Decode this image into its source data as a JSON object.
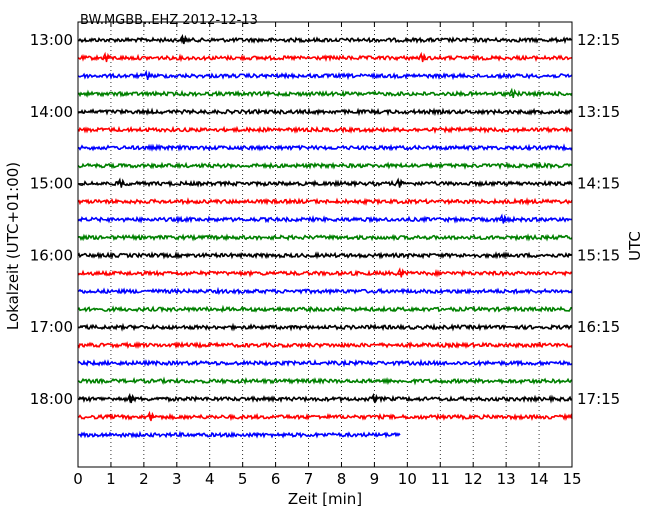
{
  "chart_data": {
    "type": "line",
    "title": "BW.MGBB..EHZ 2012-12-13",
    "xlabel": "Zeit  [min]",
    "ylabel": "Lokalzeit (UTC+01:00)",
    "ylabel_right": "UTC",
    "xlim": [
      0,
      15
    ],
    "x_ticks": [
      "0",
      "1",
      "2",
      "3",
      "4",
      "5",
      "6",
      "7",
      "8",
      "9",
      "10",
      "11",
      "12",
      "13",
      "14",
      "15"
    ],
    "grid": "vertical dotted",
    "left_tick_labels": [
      "13:00",
      "14:00",
      "15:00",
      "16:00",
      "17:00",
      "18:00"
    ],
    "right_tick_labels": [
      "12:15",
      "13:15",
      "14:15",
      "15:15",
      "16:15",
      "17:15"
    ],
    "color_cycle": [
      "#000000",
      "#ff0000",
      "#0000ff",
      "#008000"
    ],
    "traces": [
      {
        "start_local": "13:00",
        "end_minute": 15,
        "color": "#000000"
      },
      {
        "start_local": "13:15",
        "end_minute": 15,
        "color": "#ff0000"
      },
      {
        "start_local": "13:30",
        "end_minute": 15,
        "color": "#0000ff"
      },
      {
        "start_local": "13:45",
        "end_minute": 15,
        "color": "#008000"
      },
      {
        "start_local": "14:00",
        "end_minute": 15,
        "color": "#000000"
      },
      {
        "start_local": "14:15",
        "end_minute": 15,
        "color": "#ff0000"
      },
      {
        "start_local": "14:30",
        "end_minute": 15,
        "color": "#0000ff"
      },
      {
        "start_local": "14:45",
        "end_minute": 15,
        "color": "#008000"
      },
      {
        "start_local": "15:00",
        "end_minute": 15,
        "color": "#000000"
      },
      {
        "start_local": "15:15",
        "end_minute": 15,
        "color": "#ff0000"
      },
      {
        "start_local": "15:30",
        "end_minute": 15,
        "color": "#0000ff"
      },
      {
        "start_local": "15:45",
        "end_minute": 15,
        "color": "#008000"
      },
      {
        "start_local": "16:00",
        "end_minute": 15,
        "color": "#000000"
      },
      {
        "start_local": "16:15",
        "end_minute": 15,
        "color": "#ff0000"
      },
      {
        "start_local": "16:30",
        "end_minute": 15,
        "color": "#0000ff"
      },
      {
        "start_local": "16:45",
        "end_minute": 15,
        "color": "#008000"
      },
      {
        "start_local": "17:00",
        "end_minute": 15,
        "color": "#000000"
      },
      {
        "start_local": "17:15",
        "end_minute": 15,
        "color": "#ff0000"
      },
      {
        "start_local": "17:30",
        "end_minute": 15,
        "color": "#0000ff"
      },
      {
        "start_local": "17:45",
        "end_minute": 15,
        "color": "#008000"
      },
      {
        "start_local": "18:00",
        "end_minute": 15,
        "color": "#000000"
      },
      {
        "start_local": "18:15",
        "end_minute": 15,
        "color": "#ff0000"
      },
      {
        "start_local": "18:30",
        "end_minute": 9.8,
        "color": "#0000ff"
      }
    ],
    "spikes": [
      {
        "trace": 1,
        "minute": 0.85
      },
      {
        "trace": 1,
        "minute": 10.45
      },
      {
        "trace": 0,
        "minute": 3.2
      },
      {
        "trace": 2,
        "minute": 2.1
      },
      {
        "trace": 3,
        "minute": 13.2
      },
      {
        "trace": 8,
        "minute": 1.3
      },
      {
        "trace": 8,
        "minute": 9.75
      },
      {
        "trace": 10,
        "minute": 12.9
      },
      {
        "trace": 13,
        "minute": 9.8
      },
      {
        "trace": 20,
        "minute": 1.6
      },
      {
        "trace": 20,
        "minute": 9.0
      },
      {
        "trace": 21,
        "minute": 2.2
      }
    ]
  }
}
